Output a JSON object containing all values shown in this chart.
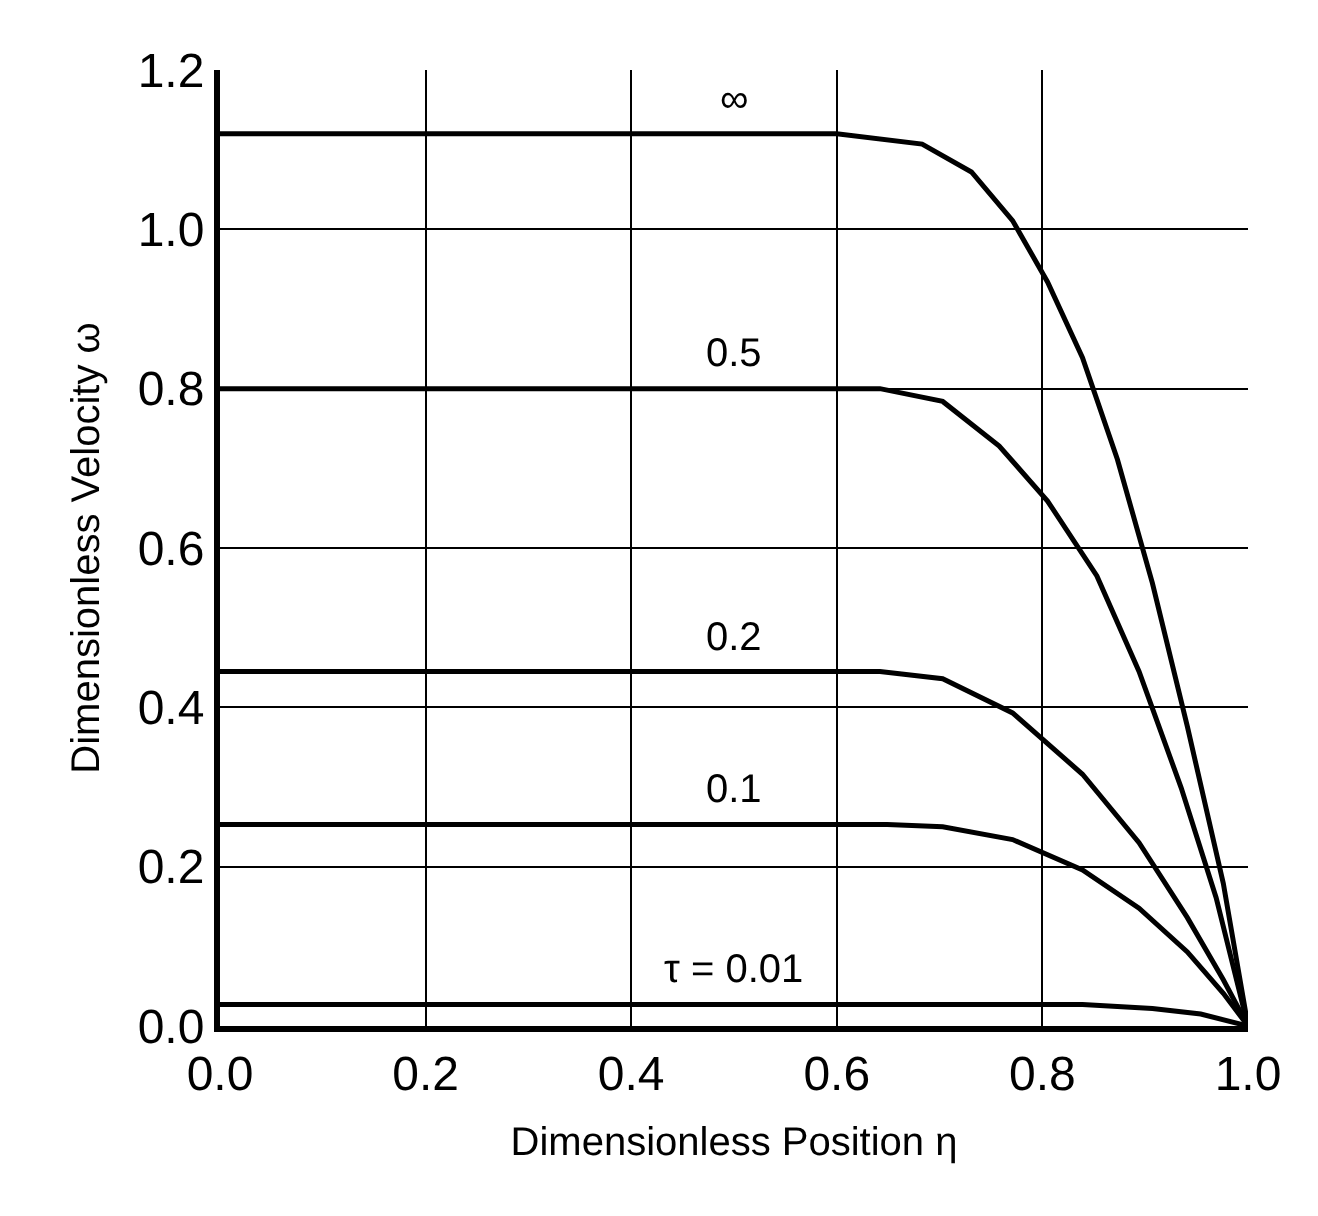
{
  "chart_data": {
    "type": "line",
    "xlabel": "Dimensionless Position η",
    "ylabel": "Dimensionless Velocity ω",
    "xlim": [
      0,
      1
    ],
    "ylim": [
      0,
      1.2
    ],
    "xticks": [
      {
        "value": 0,
        "label": "0.0"
      },
      {
        "value": 0.2,
        "label": "0.2"
      },
      {
        "value": 0.4,
        "label": "0.4"
      },
      {
        "value": 0.6,
        "label": "0.6"
      },
      {
        "value": 0.8,
        "label": "0.8"
      },
      {
        "value": 1,
        "label": "1.0"
      }
    ],
    "yticks": [
      {
        "value": 0,
        "label": "0.0"
      },
      {
        "value": 0.2,
        "label": "0.2"
      },
      {
        "value": 0.4,
        "label": "0.4"
      },
      {
        "value": 0.6,
        "label": "0.6"
      },
      {
        "value": 0.8,
        "label": "0.8"
      },
      {
        "value": 1,
        "label": "1.0"
      },
      {
        "value": 1.2,
        "label": "1.2"
      }
    ],
    "grid": true,
    "marker": "none",
    "line_style": "solid",
    "legend": false,
    "series": [
      {
        "name": "∞",
        "color": "#000000",
        "x": [
          0,
          0.6,
          0.683,
          0.731,
          0.771,
          0.805,
          0.839,
          0.873,
          0.907,
          0.941,
          0.976,
          1
        ],
        "values": [
          1.12,
          1.12,
          1.107,
          1.072,
          1.011,
          0.934,
          0.839,
          0.711,
          0.556,
          0.376,
          0.179,
          0
        ]
      },
      {
        "name": "0.5",
        "color": "#000000",
        "x": [
          0,
          0.642,
          0.703,
          0.758,
          0.805,
          0.853,
          0.894,
          0.935,
          0.969,
          1
        ],
        "values": [
          0.8,
          0.8,
          0.784,
          0.728,
          0.659,
          0.565,
          0.445,
          0.299,
          0.161,
          0
        ]
      },
      {
        "name": "0.2",
        "color": "#000000",
        "x": [
          0,
          0.642,
          0.703,
          0.771,
          0.839,
          0.894,
          0.941,
          0.976,
          1
        ],
        "values": [
          0.445,
          0.445,
          0.436,
          0.393,
          0.316,
          0.23,
          0.136,
          0.058,
          0
        ]
      },
      {
        "name": "0.1",
        "color": "#000000",
        "x": [
          0,
          0.649,
          0.703,
          0.771,
          0.839,
          0.894,
          0.941,
          0.976,
          1
        ],
        "values": [
          0.253,
          0.253,
          0.25,
          0.234,
          0.196,
          0.148,
          0.093,
          0.041,
          0
        ]
      },
      {
        "name": "τ = 0.01",
        "color": "#000000",
        "x": [
          0,
          0.839,
          0.907,
          0.954,
          1
        ],
        "values": [
          0.027,
          0.027,
          0.022,
          0.015,
          0
        ]
      }
    ]
  }
}
